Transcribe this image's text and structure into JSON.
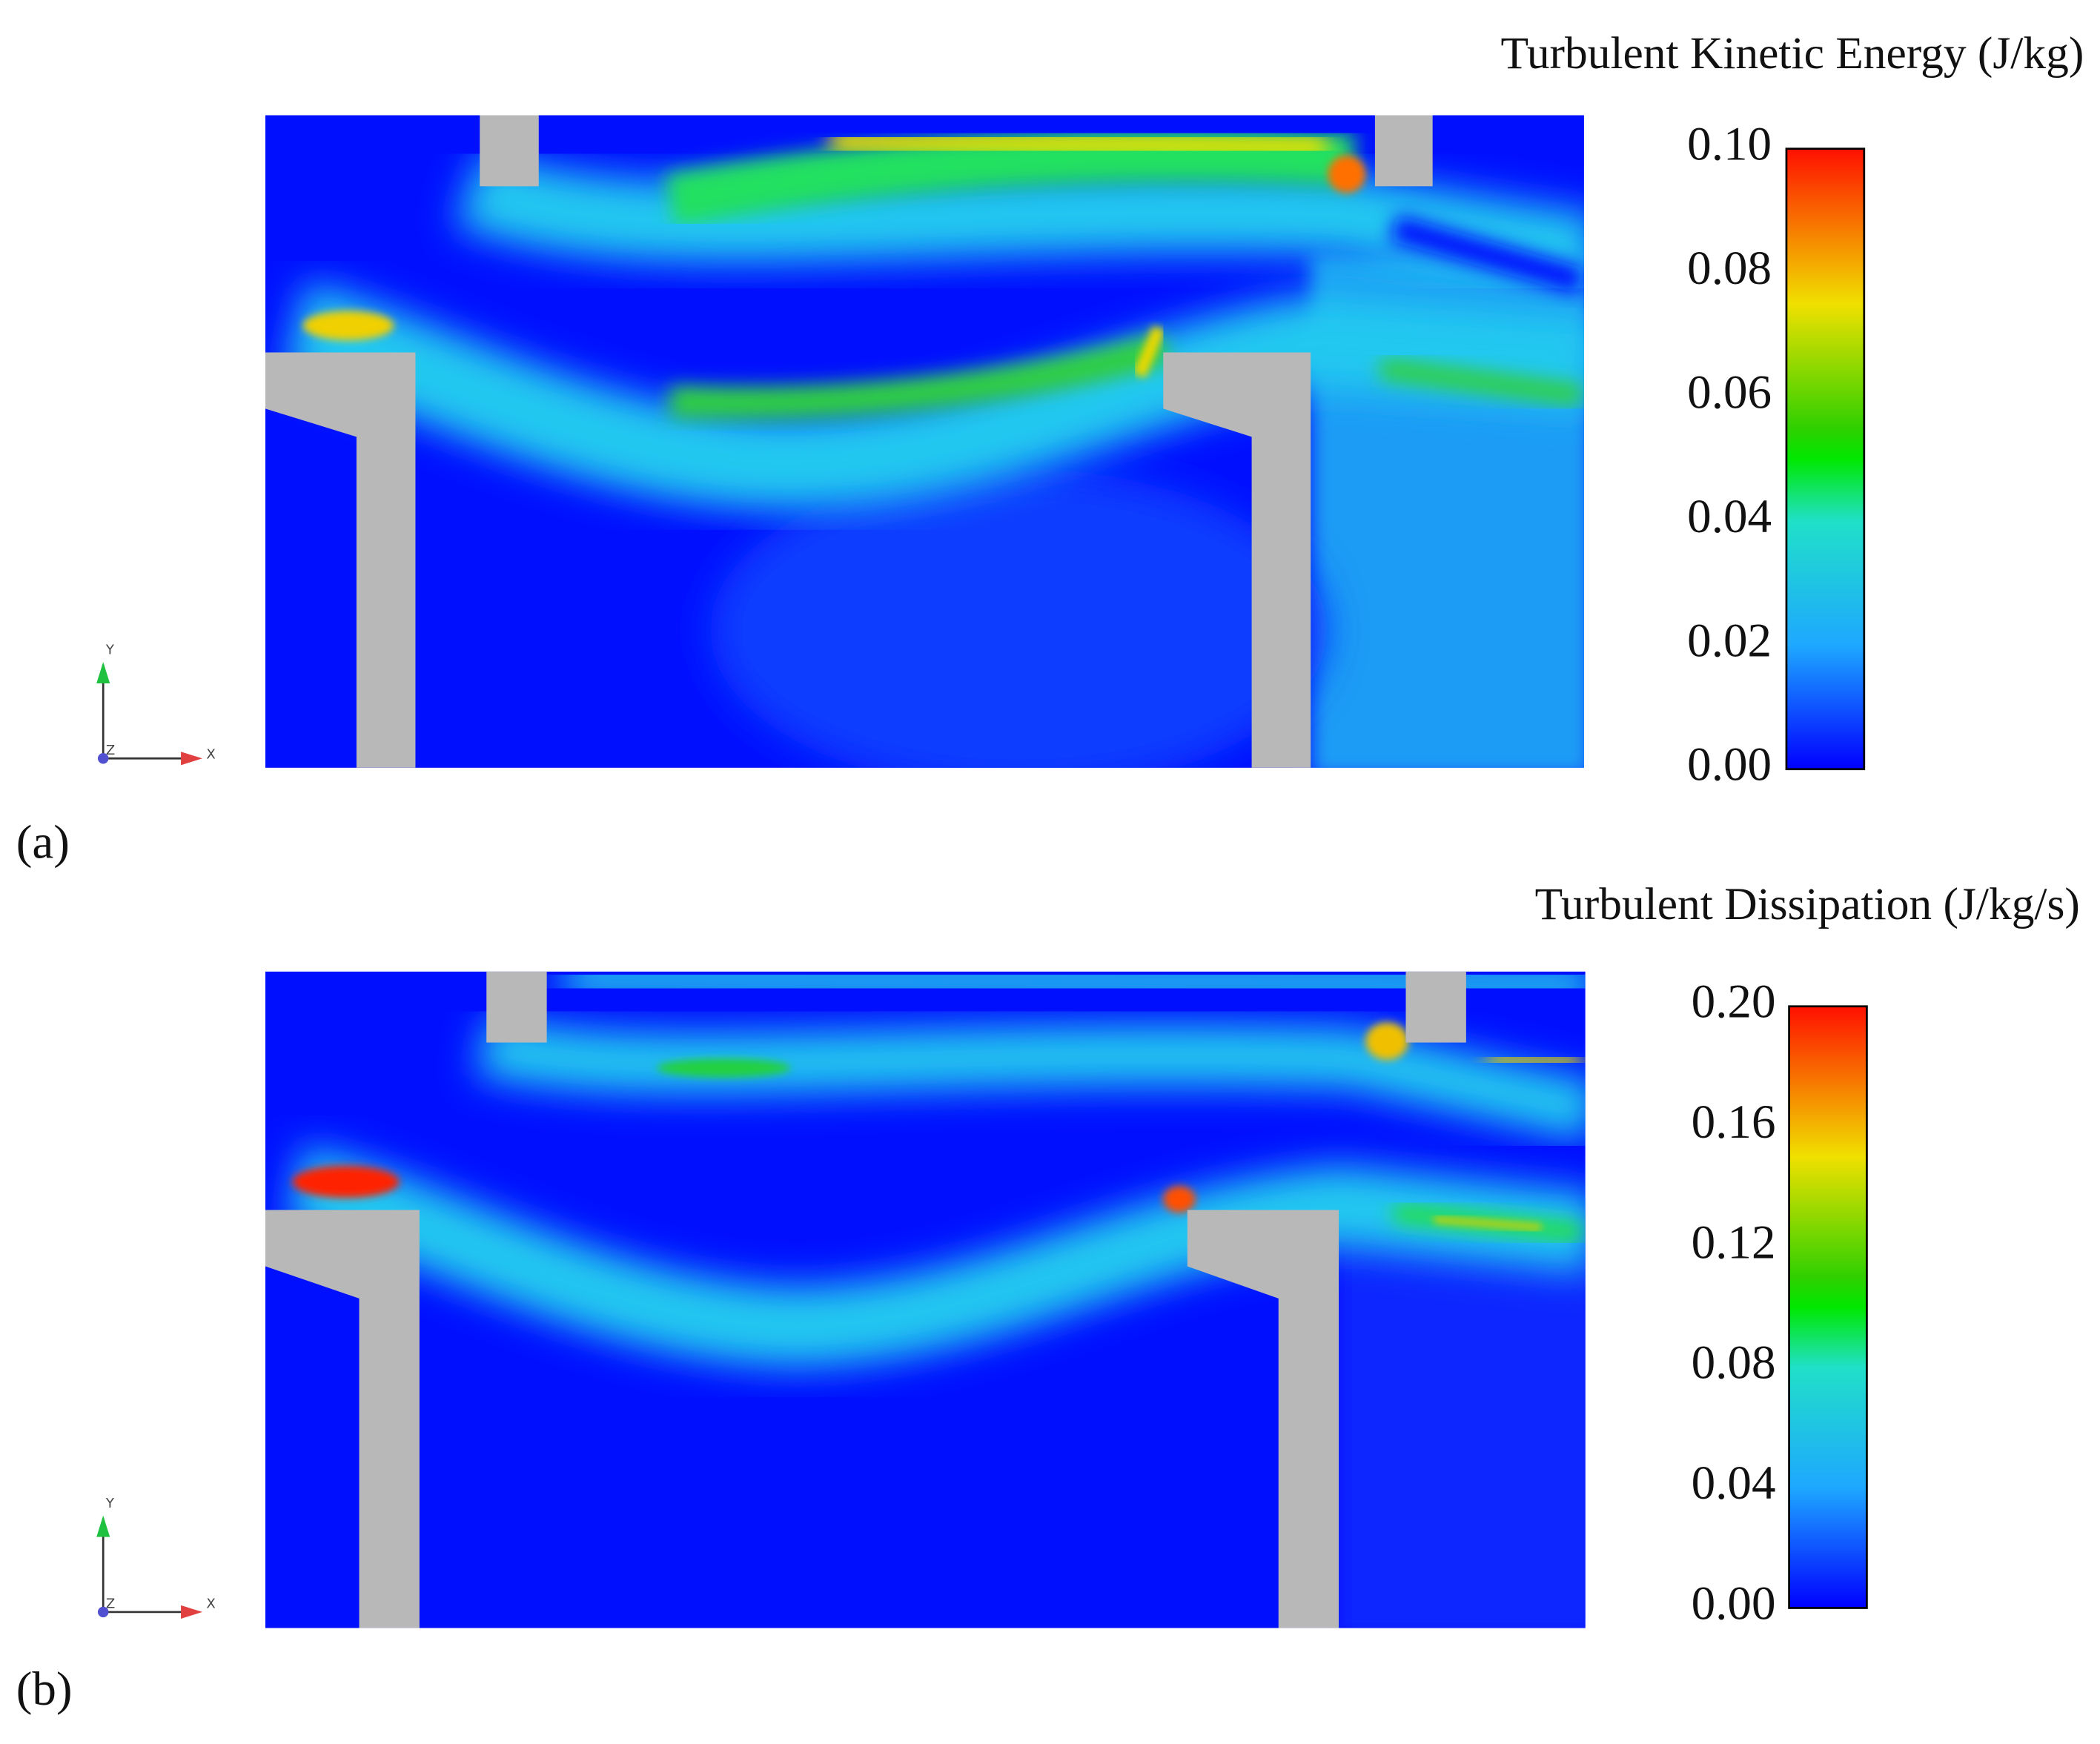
{
  "panels": [
    {
      "label": "(a)",
      "colorbar": {
        "title": "Turbulent Kinetic Energy (J/kg)",
        "ticks": [
          "0.00",
          "0.02",
          "0.04",
          "0.06",
          "0.08",
          "0.10"
        ]
      },
      "axes": {
        "y": "Y",
        "x": "X",
        "z": "Z"
      }
    },
    {
      "label": "(b)",
      "colorbar": {
        "title": "Turbulent Dissipation (J/kg/s)",
        "ticks": [
          "0.00",
          "0.04",
          "0.08",
          "0.12",
          "0.16",
          "0.20"
        ]
      },
      "axes": {
        "y": "Y",
        "x": "X",
        "z": "Z"
      }
    }
  ]
}
